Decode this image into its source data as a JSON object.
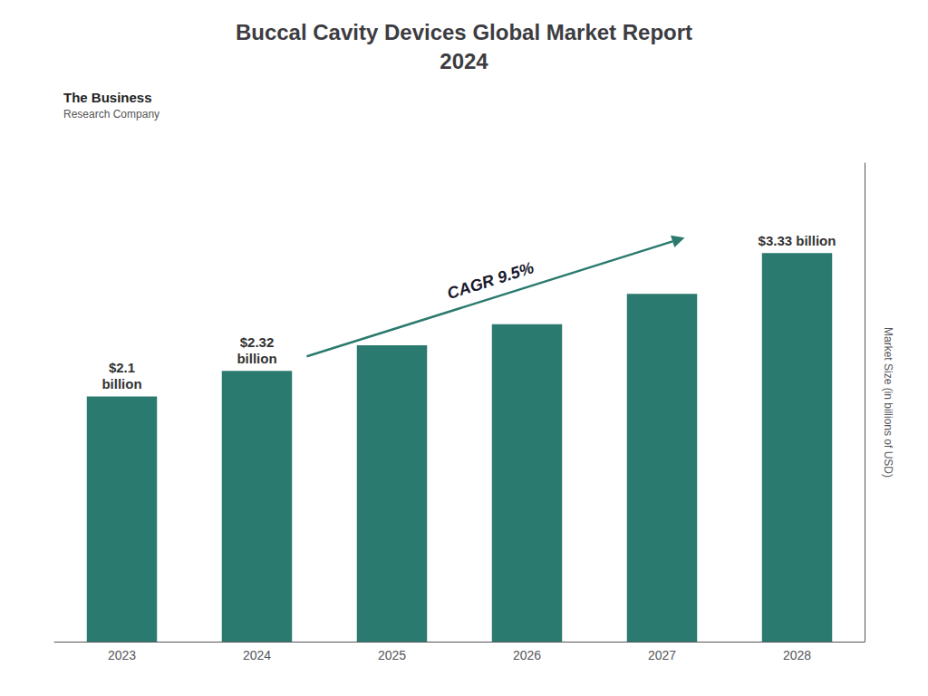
{
  "chart_data": {
    "type": "bar",
    "title": "Buccal Cavity Devices Global Market Report\n2024",
    "categories": [
      "2023",
      "2024",
      "2025",
      "2026",
      "2027",
      "2028"
    ],
    "values": [
      2.1,
      2.32,
      2.54,
      2.72,
      2.98,
      3.33
    ],
    "value_labels": [
      "$2.1\nbillion",
      "$2.32\nbillion",
      null,
      null,
      null,
      "$3.33 billion"
    ],
    "data_labels": true,
    "color": "#2a7a6f",
    "y_label": "Market Size (in billions of USD)",
    "ylim": [
      0,
      4.1
    ],
    "yticks": [],
    "tick_labels": "x",
    "grid": false,
    "annotations": [
      "CAGR 9.5%"
    ],
    "logo_text": [
      "The Business",
      "Research Company"
    ]
  }
}
